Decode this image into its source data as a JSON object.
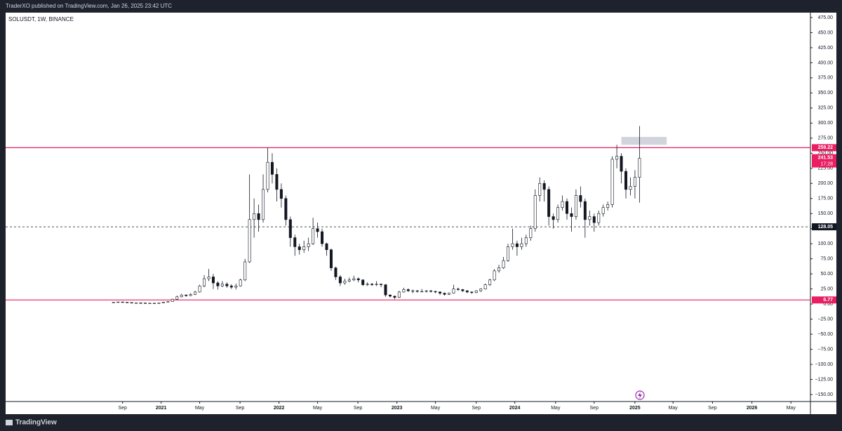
{
  "header": "TraderXO published on TradingView.com, Jan 26, 2025 23:42 UTC",
  "footer": "TradingView",
  "chart_data": {
    "type": "candlestick",
    "title": "SOLUSDT, 1W, BINANCE",
    "up_color": "#ffffff",
    "down_color": "#131722",
    "ohlc": [
      [
        3,
        3.3,
        2.8,
        3
      ],
      [
        3,
        3.8,
        2.9,
        3.5
      ],
      [
        3.5,
        3.6,
        2.8,
        3
      ],
      [
        3,
        3.1,
        2.3,
        2.5
      ],
      [
        2.5,
        2.6,
        1.9,
        2
      ],
      [
        2,
        2.2,
        1.8,
        2
      ],
      [
        2,
        2.1,
        1.6,
        1.8
      ],
      [
        1.8,
        1.9,
        1.4,
        1.5
      ],
      [
        1.5,
        1.7,
        1.3,
        1.5
      ],
      [
        1.5,
        1.8,
        1.4,
        1.5
      ],
      [
        1.5,
        2,
        1.4,
        1.8
      ],
      [
        1.8,
        3.5,
        1.7,
        3
      ],
      [
        3,
        4.5,
        2.8,
        4
      ],
      [
        4,
        9,
        3.8,
        8
      ],
      [
        8,
        14,
        7,
        12
      ],
      [
        12,
        17,
        11,
        15
      ],
      [
        15,
        16,
        12,
        14
      ],
      [
        14,
        18,
        13,
        16
      ],
      [
        16,
        22,
        15,
        20
      ],
      [
        20,
        32,
        19,
        30
      ],
      [
        30,
        48,
        28,
        42
      ],
      [
        42,
        58,
        38,
        45
      ],
      [
        45,
        50,
        25,
        35
      ],
      [
        35,
        38,
        24,
        30
      ],
      [
        30,
        38,
        28,
        33
      ],
      [
        33,
        36,
        27,
        30
      ],
      [
        30,
        33,
        25,
        28
      ],
      [
        28,
        34,
        24,
        30
      ],
      [
        30,
        42,
        29,
        40
      ],
      [
        40,
        75,
        38,
        70
      ],
      [
        70,
        215,
        68,
        140
      ],
      [
        140,
        175,
        110,
        150
      ],
      [
        150,
        165,
        120,
        140
      ],
      [
        140,
        215,
        135,
        190
      ],
      [
        190,
        259,
        185,
        235
      ],
      [
        235,
        250,
        200,
        215
      ],
      [
        215,
        225,
        170,
        190
      ],
      [
        190,
        200,
        160,
        175
      ],
      [
        175,
        180,
        130,
        140
      ],
      [
        140,
        145,
        95,
        110
      ],
      [
        110,
        115,
        80,
        95
      ],
      [
        95,
        100,
        82,
        90
      ],
      [
        90,
        105,
        85,
        95
      ],
      [
        95,
        110,
        88,
        100
      ],
      [
        100,
        143,
        98,
        125
      ],
      [
        125,
        135,
        110,
        120
      ],
      [
        120,
        125,
        95,
        100
      ],
      [
        100,
        102,
        80,
        90
      ],
      [
        90,
        92,
        55,
        60
      ],
      [
        60,
        62,
        40,
        45
      ],
      [
        45,
        48,
        30,
        35
      ],
      [
        35,
        42,
        32,
        38
      ],
      [
        38,
        44,
        36,
        40
      ],
      [
        40,
        47,
        38,
        42
      ],
      [
        42,
        44,
        36,
        40
      ],
      [
        40,
        41,
        30,
        32
      ],
      [
        32,
        36,
        30,
        33
      ],
      [
        33,
        35,
        30,
        32
      ],
      [
        32,
        38,
        30,
        33
      ],
      [
        33,
        34,
        28,
        32
      ],
      [
        32,
        33,
        12,
        15
      ],
      [
        15,
        16,
        11,
        13
      ],
      [
        13,
        14,
        8,
        11
      ],
      [
        11,
        22,
        10,
        20
      ],
      [
        20,
        27,
        19,
        24
      ],
      [
        24,
        26,
        20,
        22
      ],
      [
        22,
        24,
        18,
        22
      ],
      [
        22,
        23,
        19,
        21
      ],
      [
        21,
        25,
        20,
        21
      ],
      [
        21,
        23,
        19,
        22
      ],
      [
        22,
        23,
        19,
        21
      ],
      [
        21,
        22,
        18,
        20
      ],
      [
        20,
        21,
        15,
        18
      ],
      [
        18,
        19,
        14,
        16
      ],
      [
        16,
        19,
        15,
        18
      ],
      [
        18,
        32,
        17,
        25
      ],
      [
        25,
        27,
        22,
        24
      ],
      [
        24,
        25,
        20,
        22
      ],
      [
        22,
        23,
        18,
        20
      ],
      [
        20,
        21,
        17,
        19
      ],
      [
        19,
        23,
        18,
        22
      ],
      [
        22,
        26,
        20,
        25
      ],
      [
        25,
        34,
        24,
        32
      ],
      [
        32,
        42,
        30,
        40
      ],
      [
        40,
        58,
        38,
        55
      ],
      [
        55,
        65,
        52,
        60
      ],
      [
        60,
        78,
        58,
        72
      ],
      [
        72,
        100,
        70,
        95
      ],
      [
        95,
        125,
        90,
        100
      ],
      [
        100,
        105,
        80,
        95
      ],
      [
        95,
        110,
        90,
        100
      ],
      [
        100,
        115,
        95,
        110
      ],
      [
        110,
        130,
        105,
        125
      ],
      [
        125,
        190,
        120,
        180
      ],
      [
        180,
        210,
        170,
        200
      ],
      [
        200,
        205,
        170,
        190
      ],
      [
        190,
        195,
        130,
        145
      ],
      [
        145,
        150,
        125,
        140
      ],
      [
        140,
        165,
        135,
        160
      ],
      [
        160,
        180,
        155,
        170
      ],
      [
        170,
        175,
        140,
        150
      ],
      [
        150,
        160,
        120,
        145
      ],
      [
        145,
        190,
        140,
        180
      ],
      [
        180,
        195,
        160,
        170
      ],
      [
        170,
        175,
        110,
        140
      ],
      [
        140,
        155,
        130,
        145
      ],
      [
        145,
        150,
        120,
        135
      ],
      [
        135,
        155,
        130,
        150
      ],
      [
        150,
        165,
        145,
        160
      ],
      [
        160,
        170,
        155,
        165
      ],
      [
        165,
        245,
        160,
        240
      ],
      [
        240,
        264,
        225,
        245
      ],
      [
        245,
        250,
        200,
        220
      ],
      [
        220,
        225,
        175,
        190
      ],
      [
        190,
        210,
        180,
        195
      ],
      [
        195,
        222,
        175,
        210
      ],
      [
        210,
        295,
        168,
        241.53
      ]
    ],
    "countdown": "17:28",
    "hlines": [
      {
        "value": 259.22,
        "color": "#e91e63",
        "style": "solid"
      },
      {
        "value": 128.05,
        "color": "#131722",
        "style": "dashed"
      },
      {
        "value": 6.77,
        "color": "#e91e63",
        "style": "solid"
      }
    ],
    "rectangle": {
      "x": [
        112,
        122
      ],
      "y": [
        264,
        277
      ],
      "color": "#d1d4dc"
    },
    "xlim": [
      -23.8,
      153.7
    ],
    "ylim": [
      -161.6,
      483.1
    ],
    "xticks": [
      {
        "value": 2,
        "label": "Sep"
      },
      {
        "value": 10.5,
        "label": "2021"
      },
      {
        "value": 19,
        "label": "May"
      },
      {
        "value": 27.9,
        "label": "Sep"
      },
      {
        "value": 36.5,
        "label": "2022"
      },
      {
        "value": 45,
        "label": "May"
      },
      {
        "value": 53.9,
        "label": "Sep"
      },
      {
        "value": 62.5,
        "label": "2023"
      },
      {
        "value": 71,
        "label": "May"
      },
      {
        "value": 80,
        "label": "Sep"
      },
      {
        "value": 88.5,
        "label": "2024"
      },
      {
        "value": 97.5,
        "label": "May"
      },
      {
        "value": 106,
        "label": "Sep"
      },
      {
        "value": 115,
        "label": "2025"
      },
      {
        "value": 123.4,
        "label": "May"
      },
      {
        "value": 132.1,
        "label": "Sep"
      },
      {
        "value": 140.8,
        "label": "2026"
      },
      {
        "value": 149.4,
        "label": "May"
      }
    ],
    "yticks": [
      {
        "value": 475,
        "label": "475.00"
      },
      {
        "value": 450,
        "label": "450.00"
      },
      {
        "value": 425,
        "label": "425.00"
      },
      {
        "value": 400,
        "label": "400.00"
      },
      {
        "value": 375,
        "label": "375.00"
      },
      {
        "value": 350,
        "label": "350.00"
      },
      {
        "value": 325,
        "label": "325.00"
      },
      {
        "value": 300,
        "label": "300.00"
      },
      {
        "value": 275,
        "label": "275.00"
      },
      {
        "value": 250,
        "label": "250.00"
      },
      {
        "value": 225,
        "label": "225.00"
      },
      {
        "value": 200,
        "label": "200.00"
      },
      {
        "value": 175,
        "label": "175.00"
      },
      {
        "value": 150,
        "label": "150.00"
      },
      {
        "value": 125,
        "label": "125.00"
      },
      {
        "value": 100,
        "label": "100.00"
      },
      {
        "value": 75,
        "label": "75.00"
      },
      {
        "value": 50,
        "label": "50.00"
      },
      {
        "value": 25,
        "label": "25.00"
      },
      {
        "value": 0,
        "label": "0.00"
      },
      {
        "value": -25,
        "label": "−25.00"
      },
      {
        "value": -50,
        "label": "−50.00"
      },
      {
        "value": -75,
        "label": "−75.00"
      },
      {
        "value": -100,
        "label": "−100.00"
      },
      {
        "value": -125,
        "label": "−125.00"
      },
      {
        "value": -150,
        "label": "−150.00"
      }
    ]
  }
}
